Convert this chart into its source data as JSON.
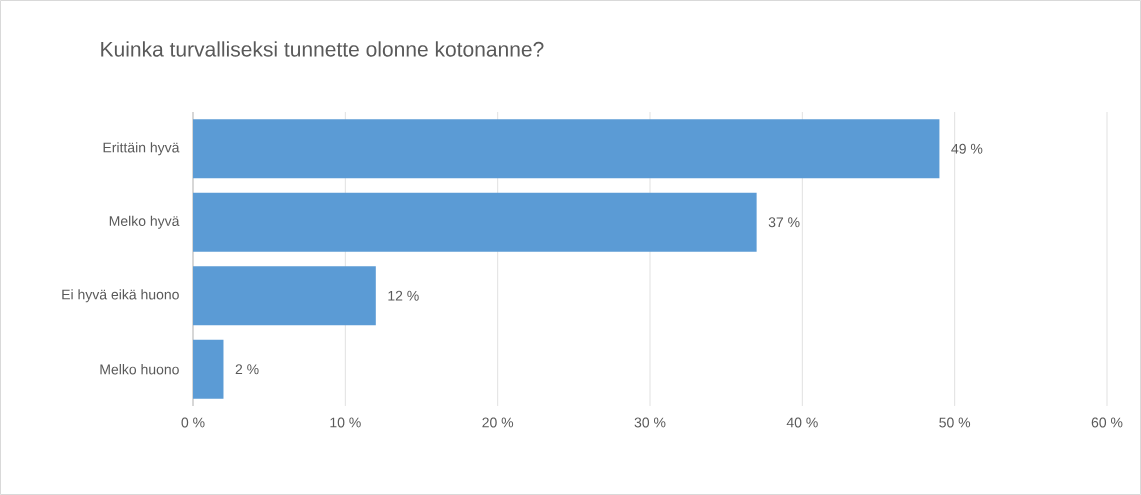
{
  "chart_data": {
    "type": "bar",
    "orientation": "horizontal",
    "title": "Kuinka turvalliseksi tunnette olonne kotonanne?",
    "categories": [
      "Erittäin hyvä",
      "Melko hyvä",
      "Ei hyvä eikä huono",
      "Melko huono"
    ],
    "values": [
      49,
      37,
      12,
      2
    ],
    "value_labels": [
      "49 %",
      "37 %",
      "12 %",
      "2 %"
    ],
    "color": "#5b9bd5",
    "xlim": [
      0,
      60
    ],
    "xticks": [
      {
        "value": 0,
        "label": "0 %"
      },
      {
        "value": 10,
        "label": "10 %"
      },
      {
        "value": 20,
        "label": "20 %"
      },
      {
        "value": 30,
        "label": "30 %"
      },
      {
        "value": 40,
        "label": "40 %"
      },
      {
        "value": 50,
        "label": "50 %"
      },
      {
        "value": 60,
        "label": "60 %"
      }
    ],
    "grid": "x"
  }
}
